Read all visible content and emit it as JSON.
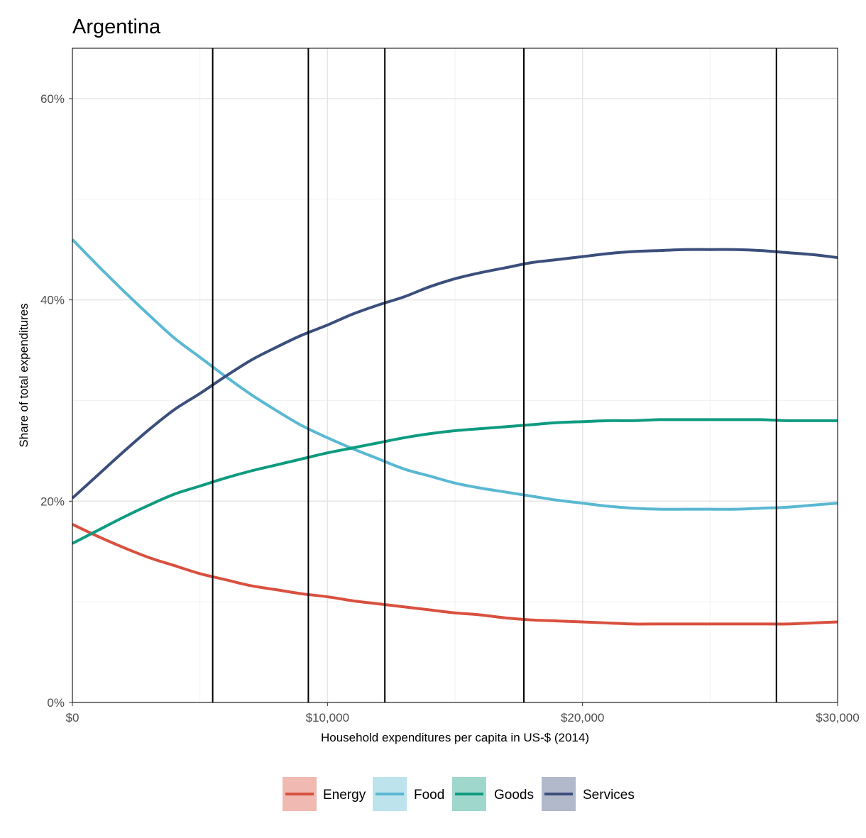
{
  "chart_data": {
    "type": "line",
    "title": "Argentina",
    "xlabel": "Household expenditures per capita in US-$ (2014)",
    "ylabel": "Share of total expenditures",
    "xlim": [
      0,
      30000
    ],
    "ylim": [
      0,
      65
    ],
    "x_ticks": [
      0,
      10000,
      20000,
      30000
    ],
    "x_tick_labels": [
      "$0",
      "$10,000",
      "$20,000",
      "$30,000"
    ],
    "y_ticks": [
      0,
      20,
      40,
      60
    ],
    "y_tick_labels": [
      "0%",
      "20%",
      "40%",
      "60%"
    ],
    "grid": true,
    "legend_position": "bottom",
    "vertical_markers": [
      5500,
      9250,
      12250,
      17700,
      27600
    ],
    "x": [
      0,
      1000,
      2000,
      3000,
      4000,
      5000,
      6000,
      7000,
      8000,
      9000,
      10000,
      11000,
      12000,
      13000,
      14000,
      15000,
      16000,
      17000,
      18000,
      19000,
      20000,
      21000,
      22000,
      23000,
      24000,
      25000,
      26000,
      27000,
      28000,
      29000,
      30000
    ],
    "series": [
      {
        "name": "Energy",
        "color": "#d9503f",
        "values": [
          17.7,
          16.5,
          15.4,
          14.4,
          13.6,
          12.8,
          12.2,
          11.6,
          11.2,
          10.8,
          10.5,
          10.1,
          9.8,
          9.5,
          9.2,
          8.9,
          8.7,
          8.4,
          8.2,
          8.1,
          8.0,
          7.9,
          7.8,
          7.8,
          7.8,
          7.8,
          7.8,
          7.8,
          7.8,
          7.9,
          8.0
        ]
      },
      {
        "name": "Food",
        "color": "#5ab8d3",
        "values": [
          46.0,
          43.4,
          40.9,
          38.5,
          36.2,
          34.3,
          32.4,
          30.6,
          29.0,
          27.5,
          26.3,
          25.2,
          24.2,
          23.2,
          22.5,
          21.8,
          21.3,
          20.9,
          20.5,
          20.1,
          19.8,
          19.5,
          19.3,
          19.2,
          19.2,
          19.2,
          19.2,
          19.3,
          19.4,
          19.6,
          19.8
        ]
      },
      {
        "name": "Goods",
        "color": "#0e9b80",
        "values": [
          15.8,
          17.1,
          18.4,
          19.6,
          20.7,
          21.5,
          22.3,
          23.0,
          23.6,
          24.2,
          24.8,
          25.3,
          25.8,
          26.3,
          26.7,
          27.0,
          27.2,
          27.4,
          27.6,
          27.8,
          27.9,
          28.0,
          28.0,
          28.1,
          28.1,
          28.1,
          28.1,
          28.1,
          28.0,
          28.0,
          28.0
        ]
      },
      {
        "name": "Services",
        "color": "#3c4f7c",
        "values": [
          20.3,
          22.6,
          24.9,
          27.1,
          29.1,
          30.7,
          32.4,
          34.0,
          35.3,
          36.5,
          37.5,
          38.6,
          39.5,
          40.3,
          41.3,
          42.1,
          42.7,
          43.2,
          43.7,
          44.0,
          44.3,
          44.6,
          44.8,
          44.9,
          45.0,
          45.0,
          45.0,
          44.9,
          44.7,
          44.5,
          44.2
        ]
      }
    ]
  }
}
